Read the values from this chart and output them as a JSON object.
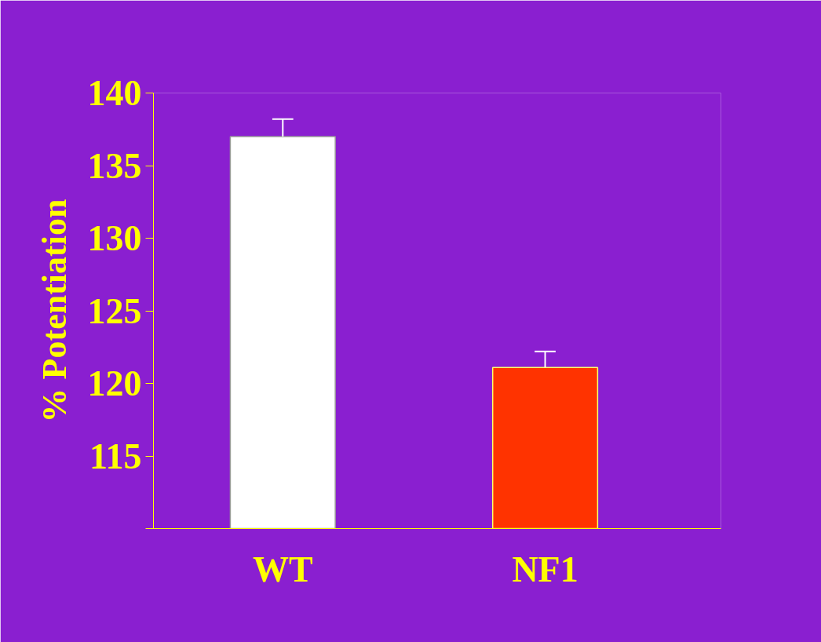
{
  "chart_data": {
    "type": "bar",
    "ylabel": "% Potentiation",
    "categories": [
      "WT",
      "NF1"
    ],
    "values": [
      137.0,
      121.1
    ],
    "colors": [
      "#ffffff",
      "#ff3300"
    ],
    "errors": [
      1.2,
      1.1
    ],
    "ylim": [
      110,
      140
    ],
    "yticks": [
      {
        "value": 110,
        "label": null
      },
      115,
      120,
      125,
      130,
      135,
      140
    ],
    "grid": false
  }
}
